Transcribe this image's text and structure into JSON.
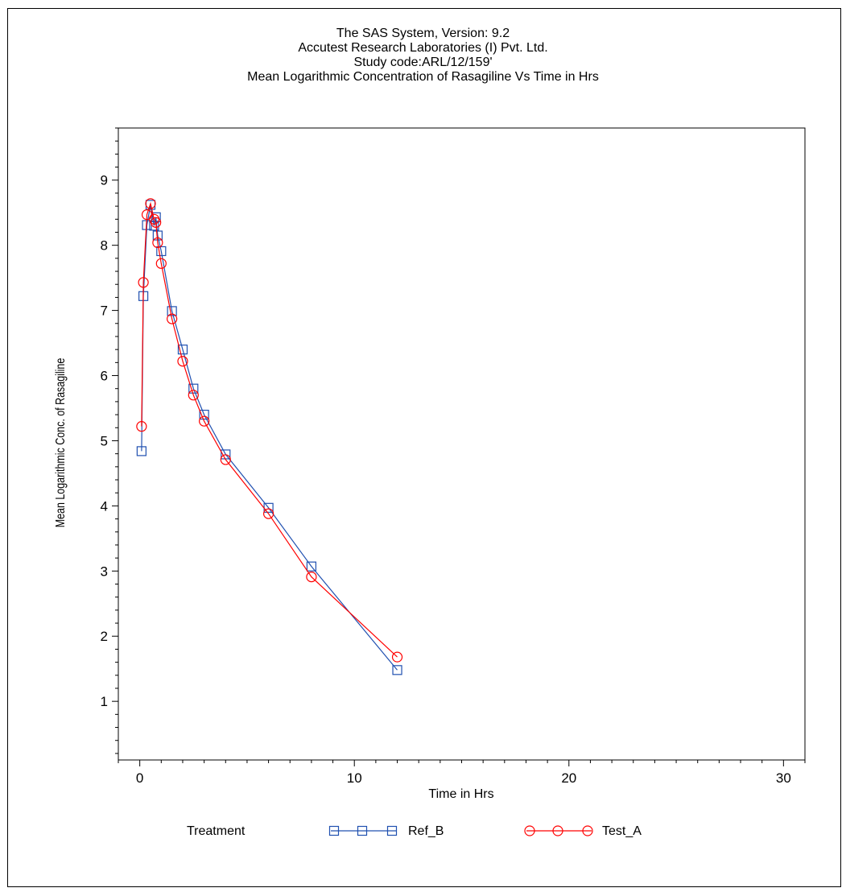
{
  "chart_data": {
    "type": "line",
    "titles": [
      "The SAS System, Version: 9.2",
      "Accutest Research Laboratories (I) Pvt. Ltd.",
      "Study code:ARL/12/159'",
      "Mean Logarithmic Concentration of Rasagiline Vs Time in Hrs"
    ],
    "xlabel": "Time in Hrs",
    "ylabel": "Mean Logarithmic Conc. of Rasagiline",
    "xlim": [
      -1,
      31
    ],
    "ylim": [
      0.1,
      9.8
    ],
    "x_ticks": [
      0,
      10,
      20,
      30
    ],
    "x_minor_step": 1,
    "y_ticks": [
      1,
      2,
      3,
      4,
      5,
      6,
      7,
      8,
      9
    ],
    "y_minor_step": 0.2,
    "grid": false,
    "legend": {
      "title": "Treatment",
      "position": "bottom"
    },
    "series": [
      {
        "name": "Ref_B",
        "color": "#2050b0",
        "marker": "square",
        "x": [
          0.083,
          0.167,
          0.333,
          0.5,
          0.667,
          0.75,
          0.833,
          1.0,
          1.5,
          2.0,
          2.5,
          3.0,
          4.0,
          6.0,
          8.0,
          12.0
        ],
        "y": [
          4.84,
          7.22,
          8.31,
          8.62,
          8.3,
          8.43,
          8.15,
          7.91,
          6.99,
          6.4,
          5.8,
          5.4,
          4.79,
          3.97,
          3.07,
          1.48
        ]
      },
      {
        "name": "Test_A",
        "color": "#ff0000",
        "marker": "circle",
        "x": [
          0.083,
          0.167,
          0.333,
          0.5,
          0.667,
          0.75,
          0.833,
          1.0,
          1.5,
          2.0,
          2.5,
          3.0,
          4.0,
          6.0,
          8.0,
          12.0
        ],
        "y": [
          5.22,
          7.43,
          8.47,
          8.64,
          8.4,
          8.35,
          8.04,
          7.72,
          6.87,
          6.22,
          5.7,
          5.3,
          4.71,
          3.88,
          2.91,
          1.68
        ]
      }
    ]
  }
}
